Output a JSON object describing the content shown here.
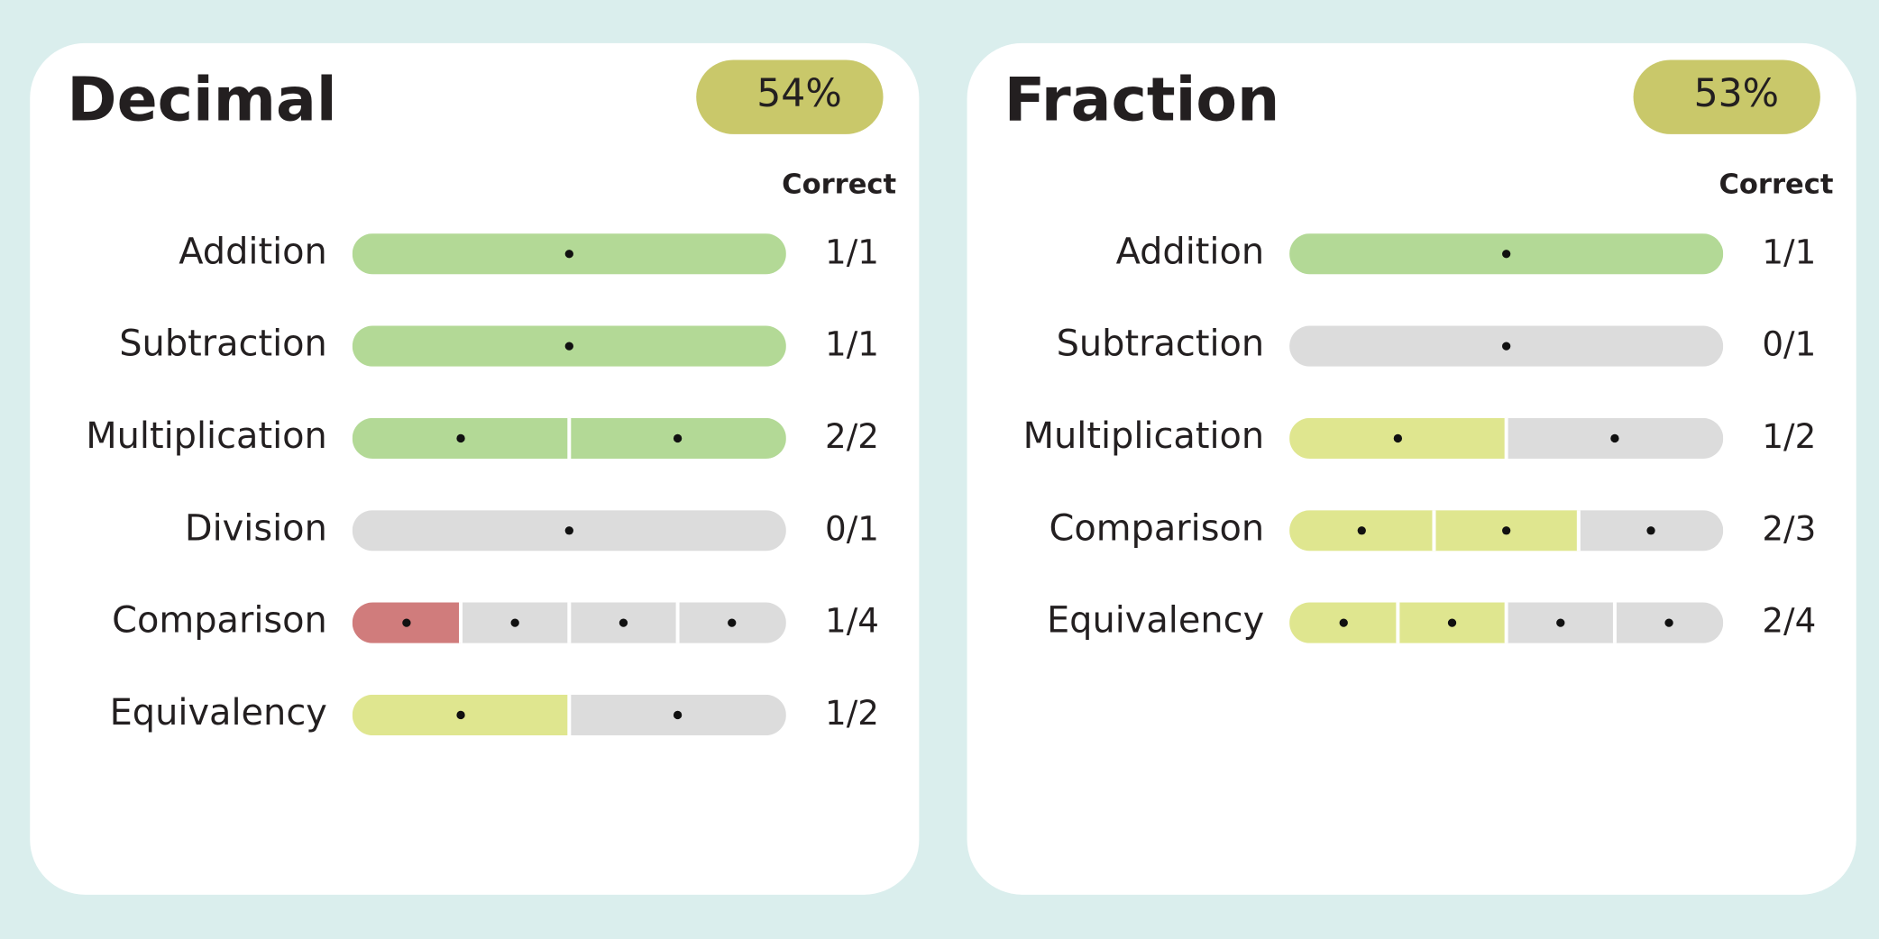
{
  "panels": [
    {
      "title": "Decimal",
      "score": "54%",
      "column_header": "Correct",
      "rows": [
        {
          "label": "Addition",
          "segments": [
            "#b3d996"
          ],
          "result": "1/1"
        },
        {
          "label": "Subtraction",
          "segments": [
            "#b3d996"
          ],
          "result": "1/1"
        },
        {
          "label": "Multiplication",
          "segments": [
            "#b3d996",
            "#b3d996"
          ],
          "result": "2/2"
        },
        {
          "label": "Division",
          "segments": [
            "#dcdcdc"
          ],
          "result": "0/1"
        },
        {
          "label": "Comparison",
          "segments": [
            "#d07c7c",
            "#dcdcdc",
            "#dcdcdc",
            "#dcdcdc"
          ],
          "result": "1/4"
        },
        {
          "label": "Equivalency",
          "segments": [
            "#dfe68f",
            "#dcdcdc"
          ],
          "result": "1/2"
        }
      ]
    },
    {
      "title": "Fraction",
      "score": "53%",
      "column_header": "Correct",
      "rows": [
        {
          "label": "Addition",
          "segments": [
            "#b3d996"
          ],
          "result": "1/1"
        },
        {
          "label": "Subtraction",
          "segments": [
            "#dcdcdc"
          ],
          "result": "0/1"
        },
        {
          "label": "Multiplication",
          "segments": [
            "#dfe68f",
            "#dcdcdc"
          ],
          "result": "1/2"
        },
        {
          "label": "Comparison",
          "segments": [
            "#dfe68f",
            "#dfe68f",
            "#dcdcdc"
          ],
          "result": "2/3"
        },
        {
          "label": "Equivalency",
          "segments": [
            "#dfe68f",
            "#dfe68f",
            "#dcdcdc",
            "#dcdcdc"
          ],
          "result": "2/4"
        }
      ]
    }
  ]
}
